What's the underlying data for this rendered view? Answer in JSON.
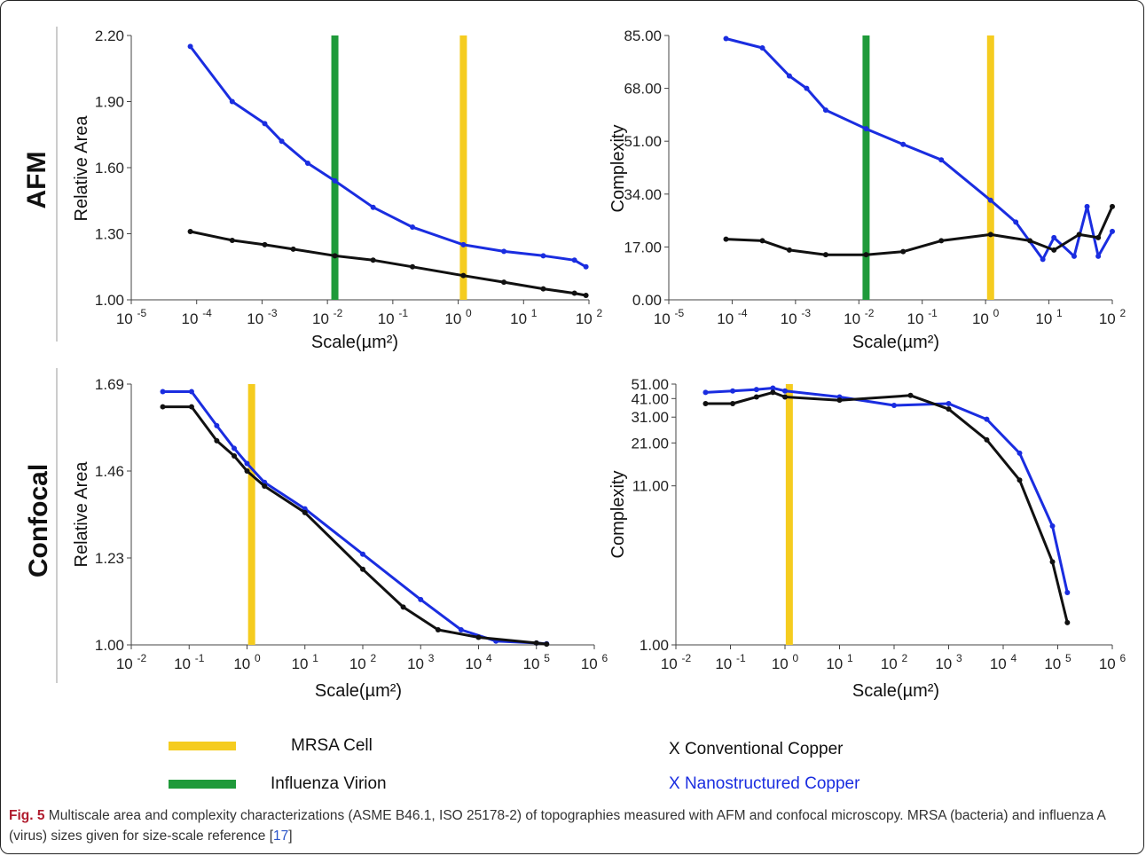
{
  "row_labels": {
    "afm": "AFM",
    "confocal": "Confocal"
  },
  "legend": {
    "mrsa_label": "MRSA Cell",
    "influenza_label": "Influenza Virion",
    "conventional_label": "X Conventional Copper",
    "nanostructured_label": "X Nanostructured Copper"
  },
  "colors": {
    "mrsa": "#f5cc1f",
    "influenza": "#1f9a3a",
    "conventional": "#111111",
    "nanostructured": "#1a2de0",
    "caption_label": "#b01c2e",
    "caption_ref": "#2a55c9"
  },
  "caption": {
    "label": "Fig. 5",
    "text_before_ref": " Multiscale area and complexity characterizations (ASME B46.1, ISO 25178-2) of topographies measured with AFM and confocal microscopy. MRSA (bacteria) and influenza A (virus) sizes given for size-scale reference [",
    "ref": "17",
    "text_after_ref": "]"
  },
  "chart_data": [
    {
      "id": "afm-area",
      "type": "scatter",
      "xlabel": "Scale(µm²)",
      "ylabel": "Relative Area",
      "x_scale": "log",
      "xlim": [
        1e-05,
        100
      ],
      "ylim": [
        1.0,
        2.2
      ],
      "xtick_exponents": [
        "-5",
        "-4",
        "-3",
        "-2",
        "-1",
        "0",
        "1",
        "2"
      ],
      "yticks": [
        "1.00",
        "1.30",
        "1.60",
        "1.90",
        "2.20"
      ],
      "ytick_values": [
        1.0,
        1.3,
        1.6,
        1.9,
        2.2
      ],
      "reference_lines": [
        {
          "ref": "mrsa",
          "x": 1.2
        },
        {
          "ref": "influenza",
          "x": 0.013
        }
      ],
      "series": [
        {
          "ref": "nanostructured",
          "x": [
            8e-05,
            0.00035,
            0.0011,
            0.002,
            0.005,
            0.013,
            0.05,
            0.2,
            1.2,
            5,
            20,
            60,
            90
          ],
          "y": [
            2.15,
            1.9,
            1.8,
            1.72,
            1.62,
            1.54,
            1.42,
            1.33,
            1.25,
            1.22,
            1.2,
            1.18,
            1.15
          ]
        },
        {
          "ref": "conventional",
          "x": [
            8e-05,
            0.00035,
            0.0011,
            0.003,
            0.013,
            0.05,
            0.2,
            1.2,
            5,
            20,
            60,
            90
          ],
          "y": [
            1.31,
            1.27,
            1.25,
            1.23,
            1.2,
            1.18,
            1.15,
            1.11,
            1.08,
            1.05,
            1.03,
            1.02
          ]
        }
      ]
    },
    {
      "id": "afm-complexity",
      "type": "scatter",
      "xlabel": "Scale(µm²)",
      "ylabel": "Complexity",
      "x_scale": "log",
      "xlim": [
        1e-05,
        100
      ],
      "ylim": [
        0,
        85
      ],
      "xtick_exponents": [
        "-5",
        "-4",
        "-3",
        "-2",
        "-1",
        "0",
        "1",
        "2"
      ],
      "yticks": [
        "0.00",
        "17.00",
        "34.00",
        "51.00",
        "68.00",
        "85.00"
      ],
      "ytick_values": [
        0,
        17,
        34,
        51,
        68,
        85
      ],
      "reference_lines": [
        {
          "ref": "mrsa",
          "x": 1.2
        },
        {
          "ref": "influenza",
          "x": 0.013
        }
      ],
      "series": [
        {
          "ref": "nanostructured",
          "x": [
            8e-05,
            0.0003,
            0.0008,
            0.0015,
            0.003,
            0.013,
            0.05,
            0.2,
            1.2,
            3,
            8,
            12,
            25,
            40,
            60,
            100
          ],
          "y": [
            84,
            81,
            72,
            68,
            61,
            55,
            50,
            45,
            32,
            25,
            13,
            20,
            14,
            30,
            14,
            22
          ]
        },
        {
          "ref": "conventional",
          "x": [
            8e-05,
            0.0003,
            0.0008,
            0.003,
            0.013,
            0.05,
            0.2,
            1.2,
            5,
            12,
            30,
            60,
            100
          ],
          "y": [
            19.5,
            19,
            16,
            14.5,
            14.5,
            15.5,
            19,
            21,
            19,
            16,
            21,
            20,
            30
          ]
        }
      ]
    },
    {
      "id": "confocal-area",
      "type": "scatter",
      "xlabel": "Scale(µm²)",
      "ylabel": "Relative Area",
      "x_scale": "log",
      "xlim": [
        0.01,
        1000000
      ],
      "ylim": [
        1.0,
        1.69
      ],
      "xtick_exponents": [
        "-2",
        "-1",
        "0",
        "1",
        "2",
        "3",
        "4",
        "5",
        "6"
      ],
      "yticks": [
        "1.00",
        "1.23",
        "1.46",
        "1.69"
      ],
      "ytick_values": [
        1.0,
        1.23,
        1.46,
        1.69
      ],
      "reference_lines": [
        {
          "ref": "mrsa",
          "x": 1.2
        }
      ],
      "series": [
        {
          "ref": "nanostructured",
          "x": [
            0.035,
            0.11,
            0.3,
            0.6,
            1,
            2,
            10,
            100,
            1000,
            5000,
            20000,
            100000,
            150000
          ],
          "y": [
            1.67,
            1.67,
            1.58,
            1.52,
            1.48,
            1.43,
            1.36,
            1.24,
            1.12,
            1.04,
            1.01,
            1.005,
            1.003
          ]
        },
        {
          "ref": "conventional",
          "x": [
            0.035,
            0.11,
            0.3,
            0.6,
            1,
            2,
            10,
            100,
            500,
            2000,
            10000,
            100000,
            150000
          ],
          "y": [
            1.63,
            1.63,
            1.54,
            1.5,
            1.46,
            1.42,
            1.35,
            1.2,
            1.1,
            1.04,
            1.02,
            1.005,
            1.002
          ]
        }
      ]
    },
    {
      "id": "confocal-complexity",
      "type": "scatter",
      "xlabel": "Scale(µm²)",
      "ylabel": "Complexity",
      "x_scale": "log",
      "xlim": [
        0.01,
        1000000
      ],
      "ylim": [
        1,
        51
      ],
      "y_scale": "log",
      "xtick_exponents": [
        "-2",
        "-1",
        "0",
        "1",
        "2",
        "3",
        "4",
        "5",
        "6"
      ],
      "yticks": [
        "1.00",
        "11.00",
        "21.00",
        "31.00",
        "41.00",
        "51.00"
      ],
      "ytick_values": [
        1,
        11,
        21,
        31,
        41,
        51
      ],
      "reference_lines": [
        {
          "ref": "mrsa",
          "x": 1.2
        }
      ],
      "series": [
        {
          "ref": "nanostructured",
          "x": [
            0.035,
            0.11,
            0.3,
            0.6,
            1,
            10,
            100,
            1000,
            5000,
            20000,
            80000,
            150000
          ],
          "y": [
            45,
            46,
            47,
            48,
            46,
            42,
            37,
            38,
            30,
            18,
            6,
            2.2
          ]
        },
        {
          "ref": "conventional",
          "x": [
            0.035,
            0.11,
            0.3,
            0.6,
            1,
            10,
            200,
            1000,
            5000,
            20000,
            80000,
            150000
          ],
          "y": [
            38,
            38,
            42,
            45,
            42,
            40,
            43,
            35,
            22,
            12,
            3.5,
            1.4
          ]
        }
      ]
    }
  ]
}
